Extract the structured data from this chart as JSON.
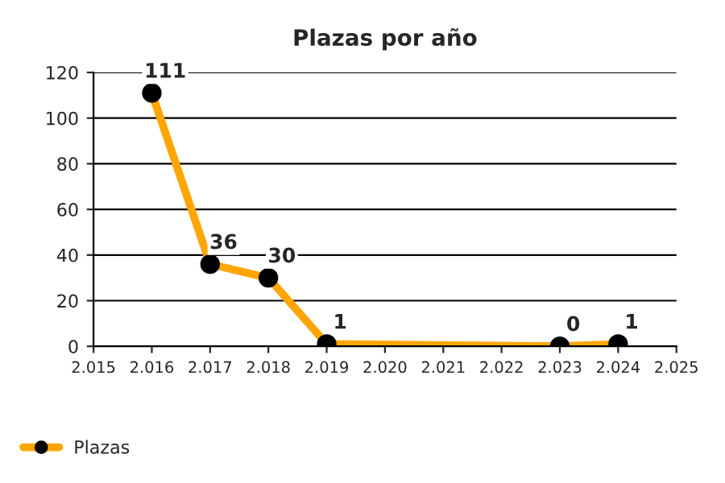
{
  "chart_data": {
    "type": "line",
    "title": "Plazas por año",
    "x": [
      2016,
      2017,
      2018,
      2019,
      2023,
      2024
    ],
    "series": [
      {
        "name": "Plazas",
        "color": "#ffa500",
        "values": [
          111,
          36,
          30,
          1,
          0,
          1
        ]
      }
    ],
    "xlim": [
      2015,
      2025
    ],
    "xticks": [
      {
        "value": 2015,
        "label": "2.015"
      },
      {
        "value": 2016,
        "label": "2.016"
      },
      {
        "value": 2017,
        "label": "2.017"
      },
      {
        "value": 2018,
        "label": "2.018"
      },
      {
        "value": 2019,
        "label": "2.019"
      },
      {
        "value": 2020,
        "label": "2.020"
      },
      {
        "value": 2021,
        "label": "2.021"
      },
      {
        "value": 2022,
        "label": "2.022"
      },
      {
        "value": 2023,
        "label": "2.023"
      },
      {
        "value": 2024,
        "label": "2.024"
      },
      {
        "value": 2025,
        "label": "2.025"
      }
    ],
    "ylim": [
      0,
      120
    ],
    "yticks": [
      0,
      20,
      40,
      60,
      80,
      100,
      120
    ],
    "grid": "y",
    "legend": "bottom left",
    "marker": "circle",
    "line_style": "solid",
    "data_labels": true
  }
}
